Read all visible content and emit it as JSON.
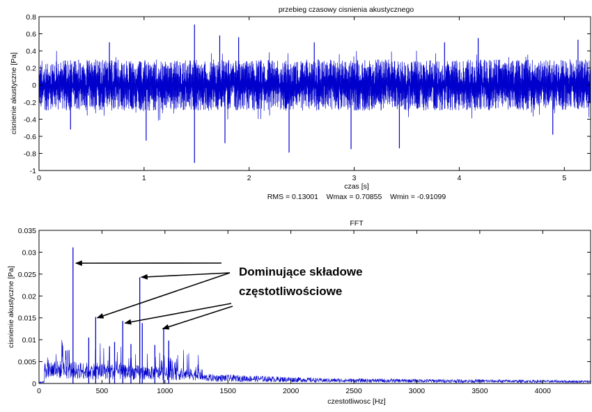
{
  "chart_data": [
    {
      "type": "line",
      "title": "przebieg czasowy cisnienia akustycznego",
      "xlabel": "czas [s]",
      "ylabel": "cisnienie akustyczne [Pa]",
      "stats_text": "RMS = 0.13001    Wmax = 0.70855    Wmin = -0.91099",
      "stats": {
        "rms": 0.13001,
        "wmax": 0.70855,
        "wmin": -0.91099
      },
      "xlim": [
        0,
        5.25
      ],
      "ylim": [
        -1,
        0.8
      ],
      "xticks": [
        0,
        1,
        2,
        3,
        4,
        5
      ],
      "xtick_labels": [
        "0",
        "1",
        "2",
        "3",
        "4",
        "5"
      ],
      "yticks": [
        -1,
        -0.8,
        -0.6,
        -0.4,
        -0.2,
        0,
        0.2,
        0.4,
        0.6,
        0.8
      ],
      "ytick_labels": [
        "-1",
        "-0.8",
        "-0.6",
        "-0.4",
        "-0.2",
        "0",
        "0.2",
        "0.4",
        "0.6",
        "0.8"
      ],
      "line_color": "#0000cc",
      "grid": false,
      "envelope": {
        "typical_upper": 0.3,
        "typical_lower": -0.3
      },
      "spikes": [
        {
          "x": 1.48,
          "y": 0.70855
        },
        {
          "x": 1.48,
          "y": -0.91099
        },
        {
          "x": 1.72,
          "y": 0.58
        },
        {
          "x": 2.38,
          "y": -0.79
        },
        {
          "x": 2.97,
          "y": -0.75
        },
        {
          "x": 3.43,
          "y": -0.74
        },
        {
          "x": 1.77,
          "y": -0.68
        },
        {
          "x": 1.02,
          "y": -0.65
        },
        {
          "x": 0.3,
          "y": -0.52
        },
        {
          "x": 4.18,
          "y": 0.55
        },
        {
          "x": 5.13,
          "y": 0.53
        },
        {
          "x": 2.62,
          "y": 0.5
        },
        {
          "x": 0.67,
          "y": 0.5
        },
        {
          "x": 1.9,
          "y": 0.56
        },
        {
          "x": 3.86,
          "y": 0.5
        },
        {
          "x": 4.89,
          "y": -0.58
        }
      ]
    },
    {
      "type": "line",
      "title": "FFT",
      "xlabel": "czestotliwosc [Hz]",
      "ylabel": "cisnienie akustyczne [Pa]",
      "xlim": [
        0,
        4380
      ],
      "ylim": [
        0,
        0.035
      ],
      "xticks": [
        0,
        500,
        1000,
        1500,
        2000,
        2500,
        3000,
        3500,
        4000
      ],
      "xtick_labels": [
        "0",
        "500",
        "1000",
        "1500",
        "2000",
        "2500",
        "3000",
        "3500",
        "4000"
      ],
      "yticks": [
        0,
        0.005,
        0.01,
        0.015,
        0.02,
        0.025,
        0.03,
        0.035
      ],
      "ytick_labels": [
        "0",
        "0.005",
        "0.01",
        "0.015",
        "0.02",
        "0.025",
        "0.03",
        "0.035"
      ],
      "line_color": "#0000cc",
      "grid": false,
      "peaks": [
        {
          "x": 270,
          "y": 0.0311
        },
        {
          "x": 800,
          "y": 0.0243
        },
        {
          "x": 450,
          "y": 0.0152
        },
        {
          "x": 665,
          "y": 0.0143
        },
        {
          "x": 990,
          "y": 0.0125
        },
        {
          "x": 395,
          "y": 0.0105
        },
        {
          "x": 820,
          "y": 0.0138
        },
        {
          "x": 600,
          "y": 0.0095
        },
        {
          "x": 1030,
          "y": 0.0098
        },
        {
          "x": 730,
          "y": 0.009
        },
        {
          "x": 560,
          "y": 0.0085
        },
        {
          "x": 920,
          "y": 0.0088
        }
      ],
      "annotation": {
        "lines": [
          "Dominujące składowe",
          "częstotliwościowe"
        ],
        "points_to": [
          {
            "x": 270,
            "y": 0.0275
          },
          {
            "x": 790,
            "y": 0.0243
          },
          {
            "x": 440,
            "y": 0.015
          },
          {
            "x": 660,
            "y": 0.0138
          },
          {
            "x": 960,
            "y": 0.0125
          }
        ]
      }
    }
  ]
}
